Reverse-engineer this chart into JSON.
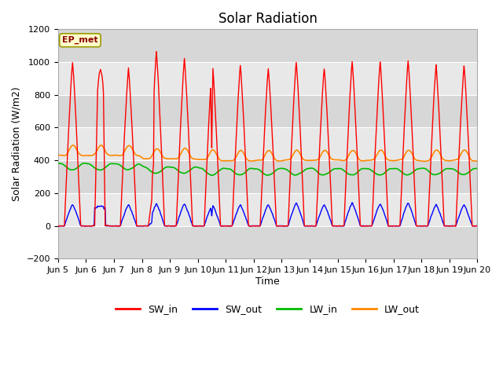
{
  "title": "Solar Radiation",
  "ylabel": "Solar Radiation (W/m2)",
  "xlabel": "Time",
  "ylim": [
    -200,
    1200
  ],
  "xtick_labels": [
    "Jun 5",
    "Jun 6",
    "Jun 7",
    "Jun 8",
    "Jun 9",
    "Jun 10",
    "Jun 11",
    "Jun 12",
    "Jun 13",
    "Jun 14",
    "Jun 15",
    "Jun 16",
    "Jun 17",
    "Jun 18",
    "Jun 19",
    "Jun 20"
  ],
  "label_ep_met": "EP_met",
  "legend_entries": [
    "SW_in",
    "SW_out",
    "LW_in",
    "LW_out"
  ],
  "colors": {
    "SW_in": "#ff0000",
    "SW_out": "#0000ff",
    "LW_in": "#00bb00",
    "LW_out": "#ff8800"
  },
  "background_color": "#ffffff",
  "plot_bg_color": "#e8e8e8",
  "grid_color": "#ffffff",
  "title_fontsize": 12,
  "axis_fontsize": 9,
  "tick_fontsize": 8,
  "n_days": 15,
  "hours_per_day": 24,
  "ep_met_color": "#8b0000",
  "ep_met_bg": "#ffffcc",
  "ep_met_edge": "#999900"
}
